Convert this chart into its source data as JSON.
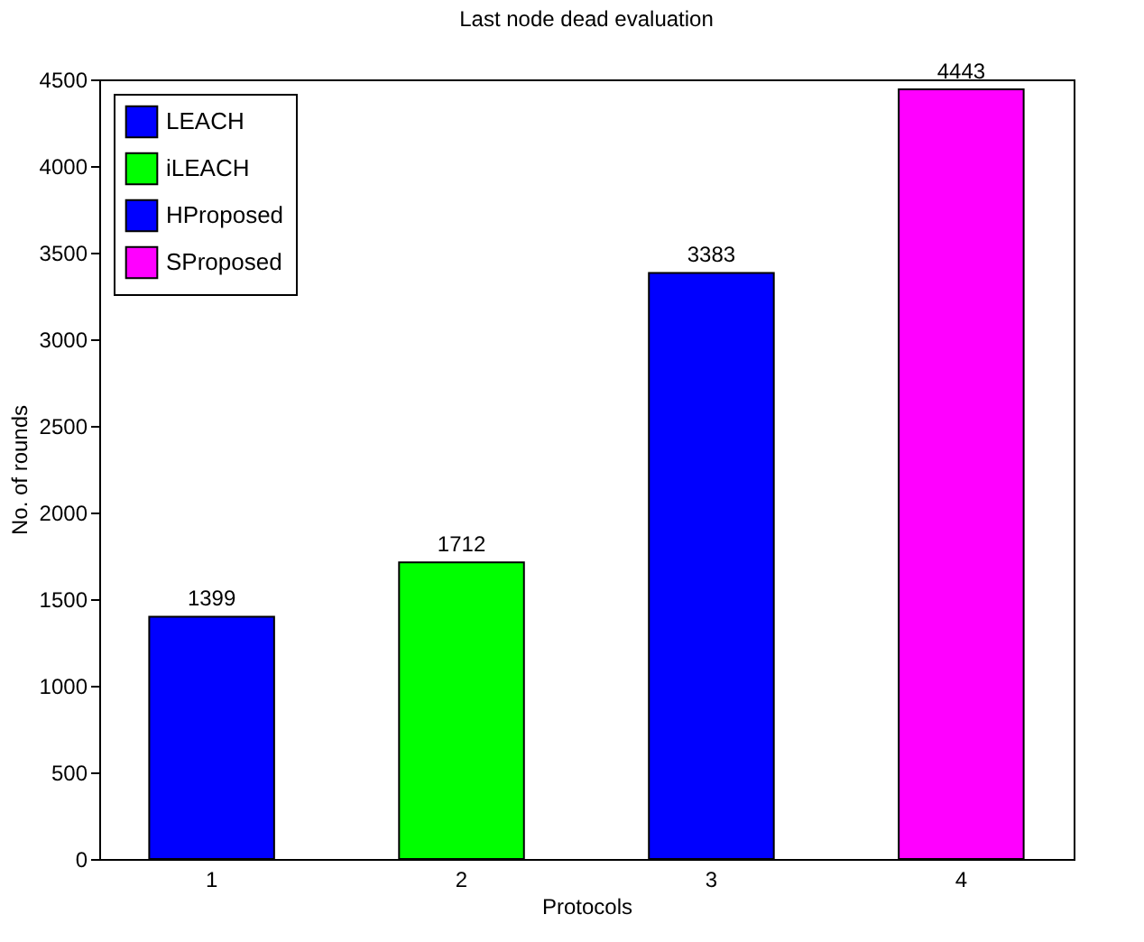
{
  "chart_data": {
    "type": "bar",
    "title": "Last node dead evaluation",
    "xlabel": "Protocols",
    "ylabel": "No. of rounds",
    "categories": [
      "1",
      "2",
      "3",
      "4"
    ],
    "series": [
      {
        "name": "LEACH",
        "color": "#0000ff",
        "values": [
          1399,
          null,
          null,
          null
        ]
      },
      {
        "name": "iLEACH",
        "color": "#00ff00",
        "values": [
          null,
          1712,
          null,
          null
        ]
      },
      {
        "name": "HProposed",
        "color": "#0000ff",
        "values": [
          null,
          null,
          3383,
          null
        ]
      },
      {
        "name": "SProposed",
        "color": "#ff00ff",
        "values": [
          null,
          null,
          null,
          4443
        ]
      }
    ],
    "ylim": [
      0,
      4500
    ],
    "yticks": [
      0,
      500,
      1000,
      1500,
      2000,
      2500,
      3000,
      3500,
      4000,
      4500
    ],
    "data_labels": true,
    "legend": "top left",
    "grid": false
  }
}
